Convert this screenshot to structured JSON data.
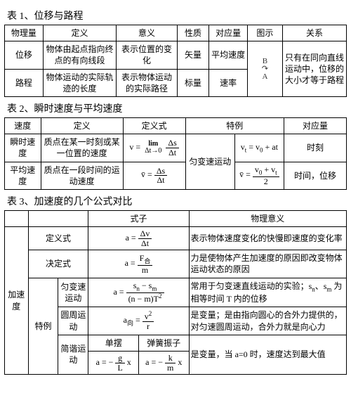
{
  "t1": {
    "title": "表 1、位移与路程",
    "h": [
      "物理量",
      "定义",
      "意义",
      "性质",
      "对应量",
      "图示",
      "关系"
    ],
    "r": [
      [
        "位移",
        "物体由起点指向终点的有向线段",
        "表示位置的变化",
        "矢量",
        "平均速度"
      ],
      [
        "路程",
        "物体运动的实际轨迹的长度",
        "表示物体运动的实际路径",
        "标量",
        "速率"
      ]
    ],
    "sketch": "B\n↷\nA",
    "rel": "只有在同向直线运动中，位移的大小才等于路程"
  },
  "t2": {
    "title": "表 2、瞬时速度与平均速度",
    "h": [
      "速度",
      "定义",
      "定义式",
      "",
      "特例",
      "对应量"
    ],
    "r1": {
      "a": "瞬时速度",
      "b": "质点在某一时刻或某一位置的速度",
      "clead": "v =",
      "limtop": "lim",
      "limbot": "Δt→0",
      "fn": "Δs",
      "fd": "Δt",
      "mid": "匀变速运动",
      "e": "v<sub>t</sub> = v<sub>0</sub> + at",
      "f": "时刻"
    },
    "r2": {
      "a": "平均速度",
      "b": "质点在一段时间的运动速度",
      "clead": "v̄ =",
      "fn": "Δs",
      "fd": "Δt",
      "elead": "v̄ =",
      "en": "v<sub>0</sub> + v<sub>t</sub>",
      "ed": "2",
      "f": "时间，位移"
    }
  },
  "t3": {
    "title": "表 3、加速度的几个公式对比",
    "h": [
      "",
      "",
      "式子",
      "",
      "物理意义"
    ],
    "side": "加速度",
    "r1": {
      "a": "定义式",
      "lead": "a =",
      "n": "Δv",
      "d": "Δt",
      "m": "表示物体速度变化的快慢即速度的变化率"
    },
    "r2": {
      "a": "决定式",
      "lead": "a =",
      "n": "F<sub>合</sub>",
      "d": "m",
      "m": "力是使物体产生加速度的原因即改变物体运动状态的原因"
    },
    "sp": "特例",
    "r3": {
      "a": "匀变速运动",
      "lead": "a =",
      "n": "s<sub>n</sub> − s<sub>m</sub>",
      "d": "(n − m)T<sup>2</sup>",
      "m": "常用于匀变速直线运动的实验；s<sub>n</sub>、s<sub>m</sub> 为相等时间 T 内的位移"
    },
    "r4": {
      "a": "圆周运动",
      "lead": "a<sub>向</sub> =",
      "n": "v<sup>2</sup>",
      "d": "r",
      "m": "是变量；是由指向圆心的合外力提供的，对匀速圆周运动，合外力就是向心力"
    },
    "r5": {
      "a": "简谐运动",
      "h1": "单摆",
      "h2": "弹簧振子",
      "l1": "a = −",
      "n1": "g",
      "d1": "L",
      "t1": " x",
      "l2": "a = −",
      "n2": "k",
      "d2": "m",
      "t2": " x",
      "m": "是变量，当 a=0 时，速度达到最大值"
    }
  }
}
